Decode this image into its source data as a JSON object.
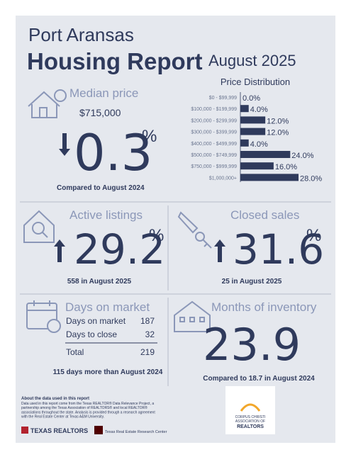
{
  "header": {
    "city": "Port Aransas",
    "title": "Housing Report",
    "period": "August 2025"
  },
  "median_price": {
    "label": "Median price",
    "value": "$715,000",
    "change": "0.3",
    "unit": "%",
    "direction": "down",
    "comparison": "Compared to August 2024"
  },
  "price_distribution": {
    "type": "bar",
    "title": "Price Distribution",
    "color": "#2f3a5c",
    "categories": [
      "$0 - $99,999",
      "$100,000 - $199,999",
      "$200,000 - $299,999",
      "$300,000 - $399,999",
      "$400,000 - $499,999",
      "$500,000 - $749,999",
      "$750,000 - $999,999",
      "$1,000,000+"
    ],
    "values": [
      0,
      4,
      12,
      12,
      4,
      24,
      16,
      28
    ],
    "value_labels": [
      "0.0%",
      "4.0%",
      "12.0%",
      "12.0%",
      "4.0%",
      "24.0%",
      "16.0%",
      "28.0%"
    ]
  },
  "active_listings": {
    "label": "Active listings",
    "change": "29.2",
    "unit": "%",
    "direction": "up",
    "comparison": "558 in August 2025"
  },
  "closed_sales": {
    "label": "Closed sales",
    "change": "31.6",
    "unit": "%",
    "direction": "up",
    "comparison": "25 in August 2025"
  },
  "days_on_market": {
    "label": "Days on market",
    "rows": [
      [
        "Days on market",
        187
      ],
      [
        "Days to close",
        32
      ]
    ],
    "total": [
      "Total",
      219
    ],
    "comparison": "115 days more than August 2024"
  },
  "months_of_inventory": {
    "label": "Months of inventory",
    "value": "23.9",
    "comparison": "Compared to 18.7 in August 2024"
  },
  "footer": {
    "about_title": "About the data used in this report",
    "about_lines": [
      "Data used in this report come from the Texas REALTOR® Data Relevance Project, a",
      "partnership among the Texas Association of REALTORS® and local REALTOR®",
      "associations throughout the state. Analysis is provided through a research agreement",
      "with the Real Estate Center at Texas A&M University."
    ],
    "logos": [
      "TEXAS REALTORS",
      "Texas Real Estate Research Center",
      "CORPUS CHRISTI",
      "ASSOCIATION OF",
      "REALTORS"
    ]
  }
}
